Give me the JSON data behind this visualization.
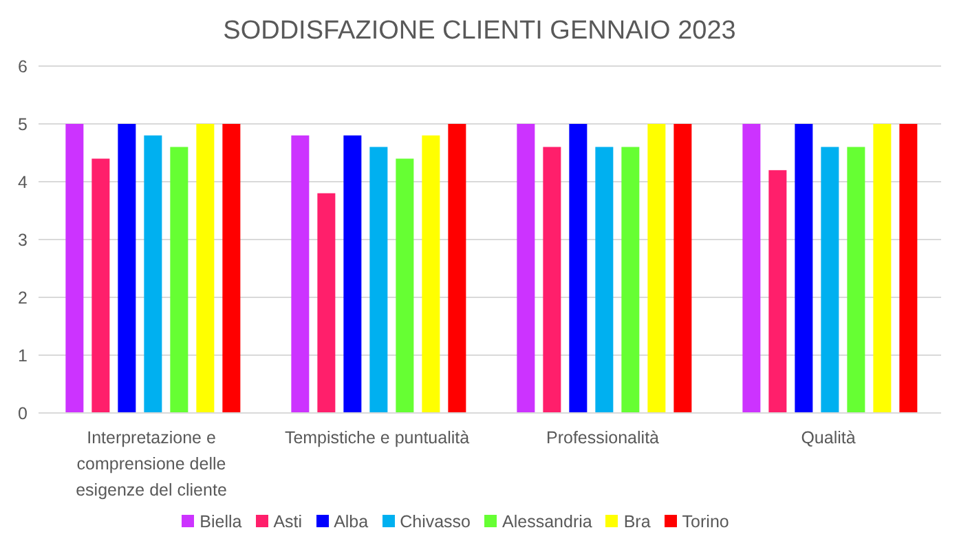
{
  "chart_data": {
    "type": "bar",
    "title": "SODDISFAZIONE CLIENTI GENNAIO 2023",
    "categories": [
      "Interpretazione e comprensione delle esigenze del cliente",
      "Tempistiche e puntualità",
      "Professionalità",
      "Qualità"
    ],
    "series": [
      {
        "name": "Biella",
        "color": "#cc33ff",
        "values": [
          5,
          4.8,
          5,
          5
        ]
      },
      {
        "name": "Asti",
        "color": "#ff1f6b",
        "values": [
          4.4,
          3.8,
          4.6,
          4.2
        ]
      },
      {
        "name": "Alba",
        "color": "#0000ff",
        "values": [
          5,
          4.8,
          5,
          5
        ]
      },
      {
        "name": "Chivasso",
        "color": "#00b0f0",
        "values": [
          4.8,
          4.6,
          4.6,
          4.6
        ]
      },
      {
        "name": "Alessandria",
        "color": "#66ff33",
        "values": [
          4.6,
          4.4,
          4.6,
          4.6
        ]
      },
      {
        "name": "Bra",
        "color": "#ffff00",
        "values": [
          5,
          4.8,
          5,
          5
        ]
      },
      {
        "name": "Torino",
        "color": "#ff0000",
        "values": [
          5,
          5,
          5,
          5
        ]
      }
    ],
    "ylim": [
      0,
      6
    ],
    "yticks": [
      0,
      1,
      2,
      3,
      4,
      5,
      6
    ],
    "grid": "y",
    "legend": "bottom"
  }
}
